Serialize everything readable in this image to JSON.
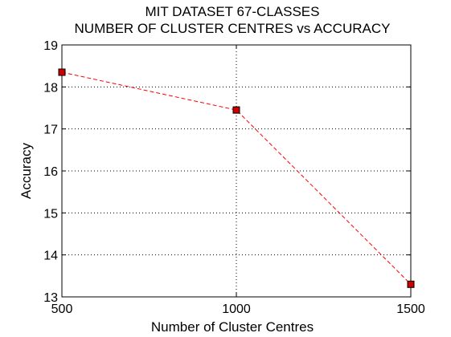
{
  "chart_data": {
    "type": "line",
    "title": [
      "MIT DATASET 67-CLASSES",
      "NUMBER OF CLUSTER CENTRES vs ACCURACY"
    ],
    "xlabel": "Number of Cluster Centres",
    "ylabel": "Accuracy",
    "xlim": [
      500,
      1500
    ],
    "ylim": [
      13,
      19
    ],
    "xticks": [
      500,
      1000,
      1500
    ],
    "yticks": [
      13,
      14,
      15,
      16,
      17,
      18,
      19
    ],
    "grid": true,
    "series": [
      {
        "x": [
          500,
          1000,
          1500
        ],
        "y": [
          18.35,
          17.45,
          13.3
        ],
        "color": "#ff0000",
        "marker_color": "#cc0000",
        "line_style": "dashed",
        "marker": "square"
      }
    ]
  }
}
